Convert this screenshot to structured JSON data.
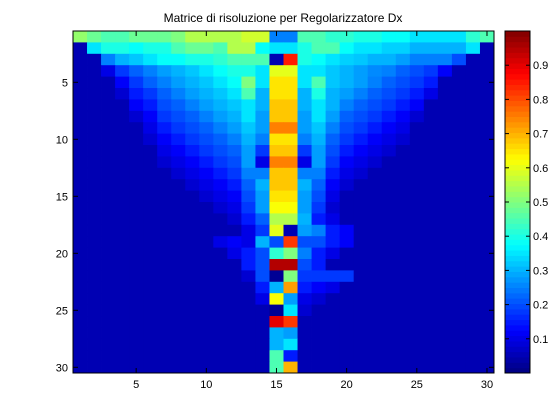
{
  "chart_data": {
    "type": "heatmap",
    "title": "Matrice di risoluzione per Regolarizzatore Dx",
    "xlabel": "",
    "ylabel": "",
    "x_ticks": [
      5,
      10,
      15,
      20,
      25,
      30
    ],
    "y_ticks": [
      5,
      10,
      15,
      20,
      25,
      30
    ],
    "xlim": [
      0.5,
      30.5
    ],
    "ylim": [
      0.5,
      30.5
    ],
    "colorbar": {
      "ticks": [
        0.1,
        0.2,
        0.3,
        0.4,
        0.5,
        0.6,
        0.7,
        0.8,
        0.9
      ],
      "range": [
        0,
        1
      ],
      "colormap": "jet"
    },
    "values": [
      [
        0.52,
        0.48,
        0.45,
        0.45,
        0.48,
        0.48,
        0.48,
        0.5,
        0.55,
        0.55,
        0.55,
        0.55,
        0.58,
        0.58,
        0.25,
        0.25,
        0.45,
        0.45,
        0.42,
        0.42,
        0.4,
        0.4,
        0.38,
        0.38,
        0.35,
        0.35,
        0.35,
        0.35,
        0.42,
        0.45
      ],
      [
        0.05,
        0.35,
        0.4,
        0.4,
        0.38,
        0.4,
        0.4,
        0.45,
        0.48,
        0.48,
        0.45,
        0.55,
        0.55,
        0.38,
        0.35,
        0.35,
        0.4,
        0.45,
        0.45,
        0.38,
        0.35,
        0.35,
        0.33,
        0.33,
        0.3,
        0.3,
        0.3,
        0.3,
        0.35,
        0.05
      ],
      [
        0.05,
        0.05,
        0.25,
        0.3,
        0.32,
        0.35,
        0.38,
        0.38,
        0.4,
        0.4,
        0.42,
        0.45,
        0.45,
        0.45,
        0.05,
        0.85,
        0.4,
        0.38,
        0.35,
        0.33,
        0.32,
        0.3,
        0.3,
        0.28,
        0.25,
        0.25,
        0.25,
        0.2,
        0.05,
        0.05
      ],
      [
        0.05,
        0.05,
        0.1,
        0.18,
        0.22,
        0.25,
        0.28,
        0.3,
        0.32,
        0.35,
        0.38,
        0.4,
        0.4,
        0.35,
        0.6,
        0.6,
        0.35,
        0.35,
        0.32,
        0.3,
        0.28,
        0.26,
        0.25,
        0.22,
        0.2,
        0.18,
        0.12,
        0.05,
        0.05,
        0.05
      ],
      [
        0.05,
        0.05,
        0.05,
        0.12,
        0.18,
        0.22,
        0.25,
        0.28,
        0.3,
        0.32,
        0.35,
        0.38,
        0.5,
        0.35,
        0.65,
        0.65,
        0.35,
        0.45,
        0.32,
        0.3,
        0.28,
        0.25,
        0.22,
        0.2,
        0.18,
        0.15,
        0.05,
        0.05,
        0.05,
        0.05
      ],
      [
        0.05,
        0.05,
        0.05,
        0.08,
        0.15,
        0.18,
        0.22,
        0.25,
        0.28,
        0.3,
        0.32,
        0.35,
        0.45,
        0.3,
        0.65,
        0.65,
        0.3,
        0.4,
        0.3,
        0.28,
        0.25,
        0.22,
        0.2,
        0.18,
        0.15,
        0.1,
        0.05,
        0.05,
        0.05,
        0.05
      ],
      [
        0.05,
        0.05,
        0.05,
        0.05,
        0.12,
        0.15,
        0.2,
        0.22,
        0.25,
        0.28,
        0.3,
        0.32,
        0.35,
        0.3,
        0.68,
        0.68,
        0.3,
        0.35,
        0.3,
        0.25,
        0.22,
        0.2,
        0.18,
        0.15,
        0.12,
        0.05,
        0.05,
        0.05,
        0.05,
        0.05
      ],
      [
        0.05,
        0.05,
        0.05,
        0.05,
        0.08,
        0.12,
        0.18,
        0.2,
        0.22,
        0.25,
        0.28,
        0.3,
        0.35,
        0.28,
        0.68,
        0.68,
        0.28,
        0.35,
        0.28,
        0.22,
        0.2,
        0.18,
        0.15,
        0.12,
        0.08,
        0.05,
        0.05,
        0.05,
        0.05,
        0.05
      ],
      [
        0.05,
        0.05,
        0.05,
        0.05,
        0.05,
        0.1,
        0.15,
        0.18,
        0.2,
        0.22,
        0.25,
        0.28,
        0.32,
        0.28,
        0.75,
        0.75,
        0.28,
        0.32,
        0.25,
        0.2,
        0.18,
        0.15,
        0.12,
        0.1,
        0.05,
        0.05,
        0.05,
        0.05,
        0.05,
        0.05
      ],
      [
        0.05,
        0.05,
        0.05,
        0.05,
        0.05,
        0.08,
        0.12,
        0.15,
        0.18,
        0.2,
        0.22,
        0.25,
        0.3,
        0.25,
        0.65,
        0.65,
        0.25,
        0.3,
        0.22,
        0.18,
        0.15,
        0.12,
        0.1,
        0.08,
        0.05,
        0.05,
        0.05,
        0.05,
        0.05,
        0.05
      ],
      [
        0.05,
        0.05,
        0.05,
        0.05,
        0.05,
        0.05,
        0.1,
        0.12,
        0.15,
        0.18,
        0.2,
        0.22,
        0.28,
        0.18,
        0.68,
        0.68,
        0.18,
        0.28,
        0.2,
        0.15,
        0.12,
        0.1,
        0.08,
        0.05,
        0.05,
        0.05,
        0.05,
        0.05,
        0.05,
        0.05
      ],
      [
        0.05,
        0.05,
        0.05,
        0.05,
        0.05,
        0.05,
        0.08,
        0.1,
        0.12,
        0.15,
        0.18,
        0.2,
        0.28,
        0.1,
        0.75,
        0.75,
        0.1,
        0.28,
        0.18,
        0.12,
        0.1,
        0.08,
        0.05,
        0.05,
        0.05,
        0.05,
        0.05,
        0.05,
        0.05,
        0.05
      ],
      [
        0.05,
        0.05,
        0.05,
        0.05,
        0.05,
        0.05,
        0.05,
        0.08,
        0.1,
        0.12,
        0.15,
        0.18,
        0.25,
        0.25,
        0.68,
        0.68,
        0.25,
        0.25,
        0.15,
        0.1,
        0.08,
        0.05,
        0.05,
        0.05,
        0.05,
        0.05,
        0.05,
        0.05,
        0.05,
        0.05
      ],
      [
        0.05,
        0.05,
        0.05,
        0.05,
        0.05,
        0.05,
        0.05,
        0.05,
        0.08,
        0.1,
        0.12,
        0.15,
        0.22,
        0.3,
        0.68,
        0.68,
        0.3,
        0.22,
        0.12,
        0.08,
        0.05,
        0.05,
        0.05,
        0.05,
        0.05,
        0.05,
        0.05,
        0.05,
        0.05,
        0.05
      ],
      [
        0.05,
        0.05,
        0.05,
        0.05,
        0.05,
        0.05,
        0.05,
        0.05,
        0.05,
        0.08,
        0.1,
        0.12,
        0.2,
        0.28,
        0.65,
        0.65,
        0.28,
        0.2,
        0.1,
        0.05,
        0.05,
        0.05,
        0.05,
        0.05,
        0.05,
        0.05,
        0.05,
        0.05,
        0.05,
        0.05
      ],
      [
        0.05,
        0.05,
        0.05,
        0.05,
        0.05,
        0.05,
        0.05,
        0.05,
        0.05,
        0.05,
        0.08,
        0.1,
        0.18,
        0.28,
        0.62,
        0.62,
        0.28,
        0.18,
        0.08,
        0.05,
        0.05,
        0.05,
        0.05,
        0.05,
        0.05,
        0.05,
        0.05,
        0.05,
        0.05,
        0.05
      ],
      [
        0.05,
        0.05,
        0.05,
        0.05,
        0.05,
        0.05,
        0.05,
        0.05,
        0.05,
        0.05,
        0.05,
        0.08,
        0.15,
        0.22,
        0.55,
        0.55,
        0.3,
        0.15,
        0.1,
        0.05,
        0.05,
        0.05,
        0.05,
        0.05,
        0.05,
        0.05,
        0.05,
        0.05,
        0.05,
        0.05
      ],
      [
        0.05,
        0.05,
        0.05,
        0.05,
        0.05,
        0.05,
        0.05,
        0.05,
        0.05,
        0.05,
        0.05,
        0.05,
        0.1,
        0.18,
        0.6,
        0.05,
        0.28,
        0.25,
        0.15,
        0.12,
        0.05,
        0.05,
        0.05,
        0.05,
        0.05,
        0.05,
        0.05,
        0.05,
        0.05,
        0.05
      ],
      [
        0.05,
        0.05,
        0.05,
        0.05,
        0.05,
        0.05,
        0.05,
        0.05,
        0.05,
        0.05,
        0.1,
        0.12,
        0.1,
        0.3,
        0.2,
        0.82,
        0.2,
        0.2,
        0.15,
        0.12,
        0.05,
        0.05,
        0.05,
        0.05,
        0.05,
        0.05,
        0.05,
        0.05,
        0.05,
        0.05
      ],
      [
        0.05,
        0.05,
        0.05,
        0.05,
        0.05,
        0.05,
        0.05,
        0.05,
        0.05,
        0.05,
        0.05,
        0.1,
        0.15,
        0.2,
        0.42,
        0.5,
        0.25,
        0.15,
        0.1,
        0.05,
        0.05,
        0.05,
        0.05,
        0.05,
        0.05,
        0.05,
        0.05,
        0.05,
        0.05,
        0.05
      ],
      [
        0.05,
        0.05,
        0.05,
        0.05,
        0.05,
        0.05,
        0.05,
        0.05,
        0.05,
        0.05,
        0.05,
        0.05,
        0.15,
        0.2,
        0.95,
        0.95,
        0.2,
        0.15,
        0.05,
        0.05,
        0.05,
        0.05,
        0.05,
        0.05,
        0.05,
        0.05,
        0.05,
        0.05,
        0.05,
        0.05
      ],
      [
        0.05,
        0.05,
        0.05,
        0.05,
        0.05,
        0.05,
        0.05,
        0.05,
        0.05,
        0.05,
        0.05,
        0.05,
        0.08,
        0.2,
        0.02,
        0.5,
        0.18,
        0.18,
        0.18,
        0.18,
        0.05,
        0.05,
        0.05,
        0.05,
        0.05,
        0.05,
        0.05,
        0.05,
        0.05,
        0.05
      ],
      [
        0.05,
        0.05,
        0.05,
        0.05,
        0.05,
        0.05,
        0.05,
        0.05,
        0.05,
        0.05,
        0.05,
        0.05,
        0.05,
        0.15,
        0.3,
        0.72,
        0.15,
        0.12,
        0.1,
        0.05,
        0.05,
        0.05,
        0.05,
        0.05,
        0.05,
        0.05,
        0.05,
        0.05,
        0.05,
        0.05
      ],
      [
        0.05,
        0.05,
        0.05,
        0.05,
        0.05,
        0.05,
        0.05,
        0.05,
        0.05,
        0.05,
        0.05,
        0.05,
        0.05,
        0.1,
        0.62,
        0.28,
        0.1,
        0.08,
        0.05,
        0.05,
        0.05,
        0.05,
        0.05,
        0.05,
        0.05,
        0.05,
        0.05,
        0.05,
        0.05,
        0.05
      ],
      [
        0.05,
        0.05,
        0.05,
        0.05,
        0.05,
        0.05,
        0.05,
        0.05,
        0.05,
        0.05,
        0.05,
        0.05,
        0.05,
        0.05,
        0.02,
        0.35,
        0.08,
        0.05,
        0.05,
        0.05,
        0.05,
        0.05,
        0.05,
        0.05,
        0.05,
        0.05,
        0.05,
        0.05,
        0.05,
        0.05
      ],
      [
        0.05,
        0.05,
        0.05,
        0.05,
        0.05,
        0.05,
        0.05,
        0.05,
        0.05,
        0.05,
        0.05,
        0.05,
        0.05,
        0.05,
        0.9,
        0.82,
        0.05,
        0.05,
        0.05,
        0.05,
        0.05,
        0.05,
        0.05,
        0.05,
        0.05,
        0.05,
        0.05,
        0.05,
        0.05,
        0.05
      ],
      [
        0.05,
        0.05,
        0.05,
        0.05,
        0.05,
        0.05,
        0.05,
        0.05,
        0.05,
        0.05,
        0.05,
        0.05,
        0.05,
        0.05,
        0.3,
        0.28,
        0.05,
        0.05,
        0.05,
        0.05,
        0.05,
        0.05,
        0.05,
        0.05,
        0.05,
        0.05,
        0.05,
        0.05,
        0.05,
        0.05
      ],
      [
        0.05,
        0.05,
        0.05,
        0.05,
        0.05,
        0.05,
        0.05,
        0.05,
        0.05,
        0.05,
        0.05,
        0.05,
        0.05,
        0.05,
        0.3,
        0.35,
        0.05,
        0.05,
        0.05,
        0.05,
        0.05,
        0.05,
        0.05,
        0.05,
        0.05,
        0.05,
        0.05,
        0.05,
        0.05,
        0.05
      ],
      [
        0.05,
        0.05,
        0.05,
        0.05,
        0.05,
        0.05,
        0.05,
        0.05,
        0.05,
        0.05,
        0.05,
        0.05,
        0.05,
        0.05,
        0.45,
        0.15,
        0.05,
        0.05,
        0.05,
        0.05,
        0.05,
        0.05,
        0.05,
        0.05,
        0.05,
        0.05,
        0.05,
        0.05,
        0.05,
        0.05
      ],
      [
        0.05,
        0.05,
        0.05,
        0.05,
        0.05,
        0.05,
        0.05,
        0.05,
        0.05,
        0.05,
        0.05,
        0.05,
        0.05,
        0.05,
        0.45,
        0.7,
        0.05,
        0.05,
        0.05,
        0.05,
        0.05,
        0.05,
        0.05,
        0.05,
        0.05,
        0.05,
        0.05,
        0.05,
        0.05,
        0.05
      ]
    ]
  }
}
